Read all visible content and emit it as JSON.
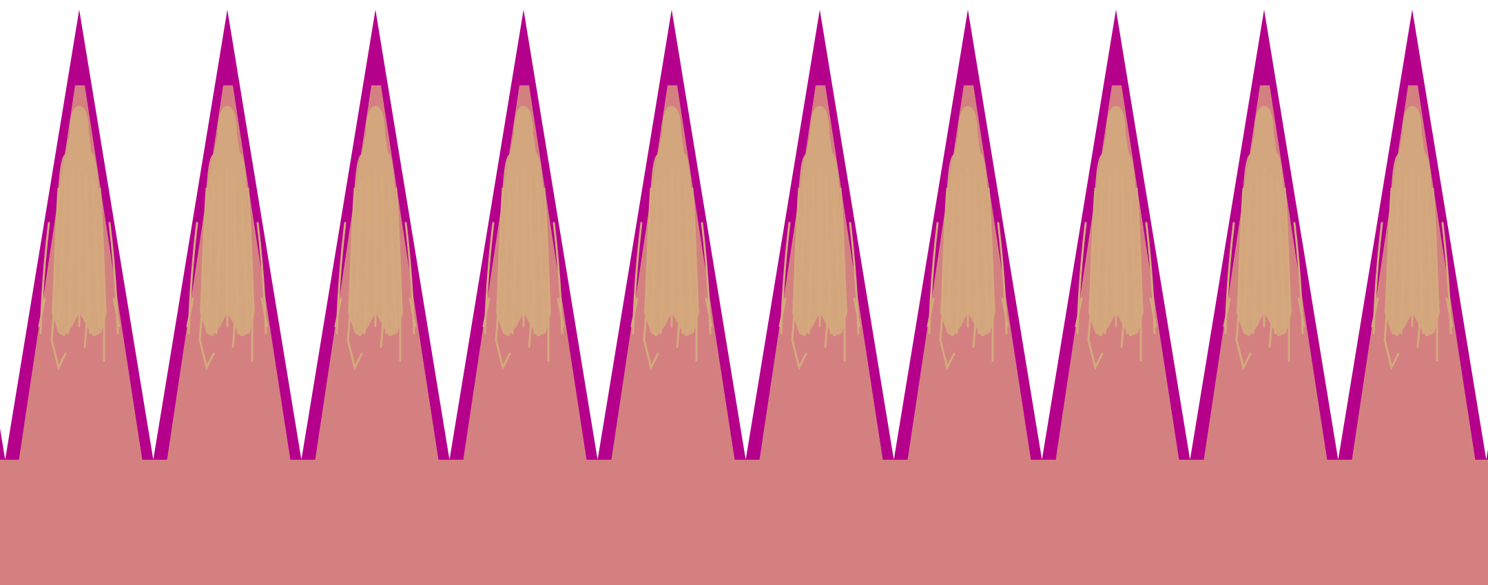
{
  "pattern": {
    "name": "decorative-triangle-border",
    "colors": {
      "background": "#ffffff",
      "outline": "#b5008c",
      "fill": "#d48080",
      "detail": "#d4aa7d"
    },
    "motif": "crown-tassel"
  }
}
